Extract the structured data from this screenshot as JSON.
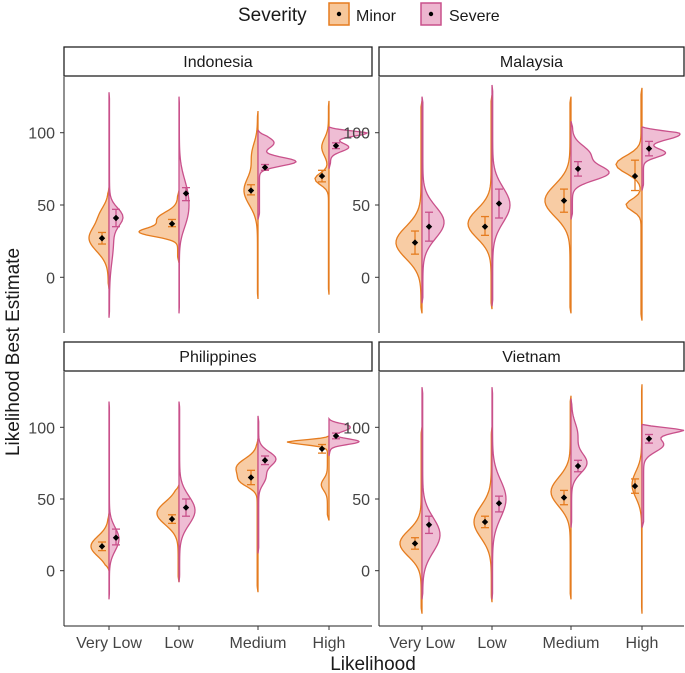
{
  "chart_data": {
    "type": "split-violin",
    "legend": {
      "title": "Severity",
      "position": "top",
      "entries": [
        {
          "name": "Minor",
          "fill": "#F7C79A",
          "stroke": "#E57C1F"
        },
        {
          "name": "Severe",
          "fill": "#EDB6CF",
          "stroke": "#C9518B"
        }
      ]
    },
    "xlabel": "Likelihood",
    "ylabel": "Likelihood Best Estimate",
    "categories": [
      "Very Low",
      "Low",
      "Medium",
      "High"
    ],
    "y_ticks": [
      0,
      50,
      100
    ],
    "ylim": [
      -33,
      133
    ],
    "panels": [
      {
        "title": "Indonesia",
        "groups": [
          {
            "category": "Very Low",
            "minor": {
              "mean": 27,
              "ci": [
                23,
                31
              ]
            },
            "severe": {
              "mean": 41,
              "ci": [
                35,
                47
              ]
            }
          },
          {
            "category": "Low",
            "minor": {
              "mean": 37,
              "ci": [
                35,
                40
              ]
            },
            "severe": {
              "mean": 58,
              "ci": [
                53,
                62
              ]
            }
          },
          {
            "category": "Medium",
            "minor": {
              "mean": 60,
              "ci": [
                57,
                64
              ]
            },
            "severe": {
              "mean": 76,
              "ci": [
                74,
                78
              ]
            }
          },
          {
            "category": "High",
            "minor": {
              "mean": 70,
              "ci": [
                66,
                74
              ]
            },
            "severe": {
              "mean": 91,
              "ci": [
                89,
                93
              ]
            }
          }
        ]
      },
      {
        "title": "Malaysia",
        "groups": [
          {
            "category": "Very Low",
            "minor": {
              "mean": 24,
              "ci": [
                16,
                32
              ]
            },
            "severe": {
              "mean": 35,
              "ci": [
                25,
                45
              ]
            }
          },
          {
            "category": "Low",
            "minor": {
              "mean": 35,
              "ci": [
                29,
                42
              ]
            },
            "severe": {
              "mean": 51,
              "ci": [
                41,
                61
              ]
            }
          },
          {
            "category": "Medium",
            "minor": {
              "mean": 53,
              "ci": [
                45,
                61
              ]
            },
            "severe": {
              "mean": 75,
              "ci": [
                70,
                80
              ]
            }
          },
          {
            "category": "High",
            "minor": {
              "mean": 70,
              "ci": [
                60,
                81
              ]
            },
            "severe": {
              "mean": 89,
              "ci": [
                84,
                94
              ]
            }
          }
        ]
      },
      {
        "title": "Philippines",
        "groups": [
          {
            "category": "Very Low",
            "minor": {
              "mean": 17,
              "ci": [
                14,
                20
              ]
            },
            "severe": {
              "mean": 23,
              "ci": [
                18,
                29
              ]
            }
          },
          {
            "category": "Low",
            "minor": {
              "mean": 36,
              "ci": [
                33,
                39
              ]
            },
            "severe": {
              "mean": 44,
              "ci": [
                38,
                50
              ]
            }
          },
          {
            "category": "Medium",
            "minor": {
              "mean": 65,
              "ci": [
                60,
                70
              ]
            },
            "severe": {
              "mean": 77,
              "ci": [
                74,
                80
              ]
            }
          },
          {
            "category": "High",
            "minor": {
              "mean": 85,
              "ci": [
                82,
                88
              ]
            },
            "severe": {
              "mean": 94,
              "ci": [
                92,
                96
              ]
            }
          }
        ]
      },
      {
        "title": "Vietnam",
        "groups": [
          {
            "category": "Very Low",
            "minor": {
              "mean": 19,
              "ci": [
                15,
                23
              ]
            },
            "severe": {
              "mean": 32,
              "ci": [
                26,
                38
              ]
            }
          },
          {
            "category": "Low",
            "minor": {
              "mean": 34,
              "ci": [
                30,
                38
              ]
            },
            "severe": {
              "mean": 47,
              "ci": [
                41,
                52
              ]
            }
          },
          {
            "category": "Medium",
            "minor": {
              "mean": 51,
              "ci": [
                46,
                56
              ]
            },
            "severe": {
              "mean": 73,
              "ci": [
                69,
                77
              ]
            }
          },
          {
            "category": "High",
            "minor": {
              "mean": 59,
              "ci": [
                54,
                64
              ]
            },
            "severe": {
              "mean": 92,
              "ci": [
                89,
                95
              ]
            }
          }
        ]
      }
    ]
  }
}
